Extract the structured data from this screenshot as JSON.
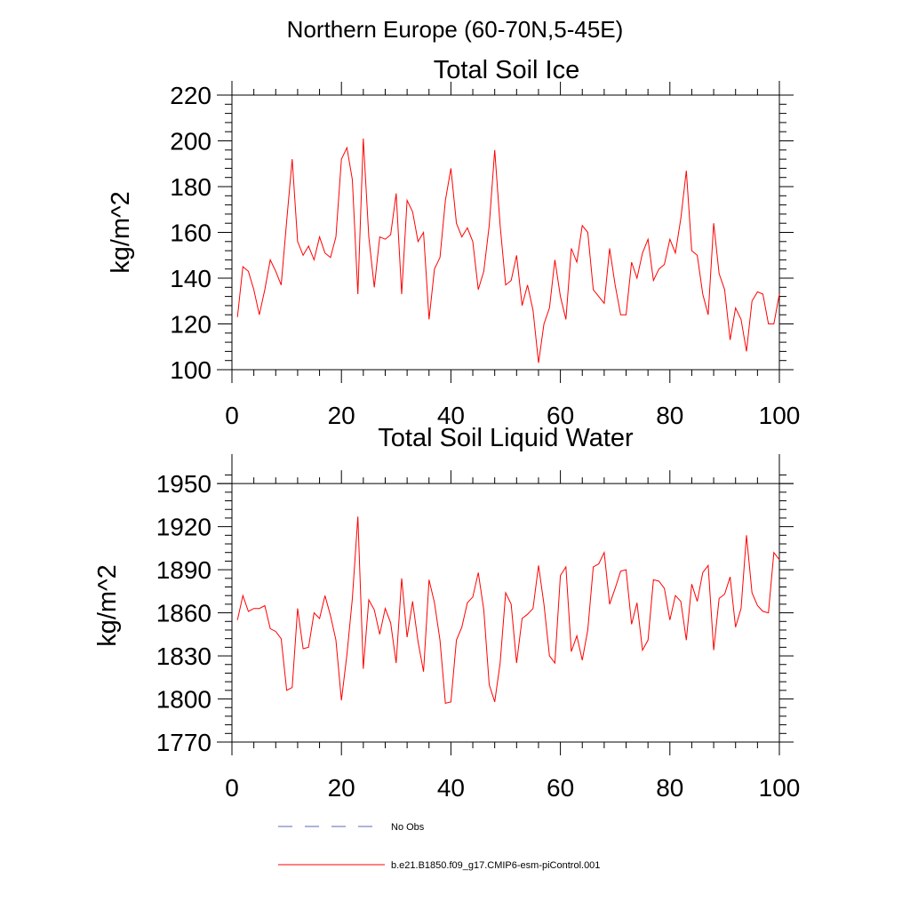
{
  "page_title": "Northern Europe (60-70N,5-45E)",
  "colors": {
    "series": "#ff0000",
    "obs": "#5a6ab0",
    "axis": "#000000"
  },
  "legend": {
    "obs_label": "No Obs",
    "model_label": "b.e21.B1850.f09_g17.CMIP6-esm-piControl.001"
  },
  "chart_data": [
    {
      "type": "line",
      "title": "Total Soil Ice",
      "xlabel": "",
      "ylabel": "kg/m^2",
      "xlim": [
        0,
        100
      ],
      "ylim": [
        100,
        220
      ],
      "x_ticks": [
        0,
        20,
        40,
        60,
        80,
        100
      ],
      "x_tick_labels": [
        "0",
        "20",
        "40",
        "60",
        "80",
        "100"
      ],
      "y_ticks": [
        100,
        120,
        140,
        160,
        180,
        200,
        220
      ],
      "y_tick_labels": [
        "100",
        "120",
        "140",
        "160",
        "180",
        "200",
        "220"
      ],
      "x_minor_step": 4,
      "y_minor_step": 4,
      "series": [
        {
          "name": "b.e21.B1850.f09_g17.CMIP6-esm-piControl.001",
          "color": "#ff0000",
          "x_start": 1,
          "values": [
            123,
            145,
            143,
            135,
            124,
            135,
            148,
            143,
            137,
            165,
            192,
            156,
            150,
            154,
            148,
            158,
            151,
            149,
            158,
            192,
            197,
            183,
            133,
            201,
            158,
            136,
            158,
            157,
            159,
            177,
            133,
            174,
            169,
            156,
            160,
            122,
            144,
            149,
            174,
            188,
            164,
            158,
            162,
            156,
            135,
            143,
            163,
            196,
            163,
            137,
            139,
            150,
            128,
            137,
            126,
            103,
            120,
            127,
            148,
            132,
            122,
            153,
            147,
            163,
            160,
            135,
            132,
            129,
            153,
            137,
            124,
            124,
            147,
            140,
            151,
            157,
            139,
            144,
            146,
            157,
            151,
            166,
            187,
            152,
            150,
            133,
            124,
            164,
            142,
            135,
            113,
            127,
            122,
            108,
            130,
            134,
            133,
            120,
            120,
            133
          ]
        }
      ]
    },
    {
      "type": "line",
      "title": "Total Soil Liquid Water",
      "xlabel": "",
      "ylabel": "kg/m^2",
      "xlim": [
        0,
        100
      ],
      "ylim": [
        1770,
        1960
      ],
      "x_ticks": [
        0,
        20,
        40,
        60,
        80,
        100
      ],
      "x_tick_labels": [
        "0",
        "20",
        "40",
        "60",
        "80",
        "100"
      ],
      "y_ticks": [
        1770,
        1800,
        1830,
        1860,
        1890,
        1920,
        1950
      ],
      "y_tick_labels": [
        "1770",
        "1800",
        "1830",
        "1860",
        "1890",
        "1920",
        "1950"
      ],
      "x_minor_step": 4,
      "y_minor_step": 6,
      "series": [
        {
          "name": "b.e21.B1850.f09_g17.CMIP6-esm-piControl.001",
          "color": "#ff0000",
          "x_start": 1,
          "values": [
            1855,
            1872,
            1861,
            1863,
            1863,
            1865,
            1849,
            1847,
            1842,
            1806,
            1808,
            1863,
            1835,
            1836,
            1860,
            1856,
            1872,
            1858,
            1841,
            1799,
            1831,
            1870,
            1927,
            1821,
            1869,
            1862,
            1845,
            1863,
            1853,
            1825,
            1884,
            1843,
            1868,
            1840,
            1819,
            1883,
            1867,
            1841,
            1797,
            1798,
            1841,
            1850,
            1867,
            1871,
            1888,
            1862,
            1810,
            1798,
            1825,
            1874,
            1866,
            1825,
            1856,
            1859,
            1863,
            1893,
            1866,
            1830,
            1825,
            1886,
            1892,
            1833,
            1844,
            1827,
            1848,
            1892,
            1894,
            1902,
            1866,
            1877,
            1889,
            1890,
            1852,
            1867,
            1834,
            1841,
            1883,
            1882,
            1877,
            1855,
            1872,
            1868,
            1841,
            1880,
            1868,
            1888,
            1893,
            1834,
            1870,
            1873,
            1885,
            1850,
            1863,
            1914,
            1874,
            1865,
            1861,
            1860,
            1902,
            1897
          ]
        }
      ]
    }
  ]
}
